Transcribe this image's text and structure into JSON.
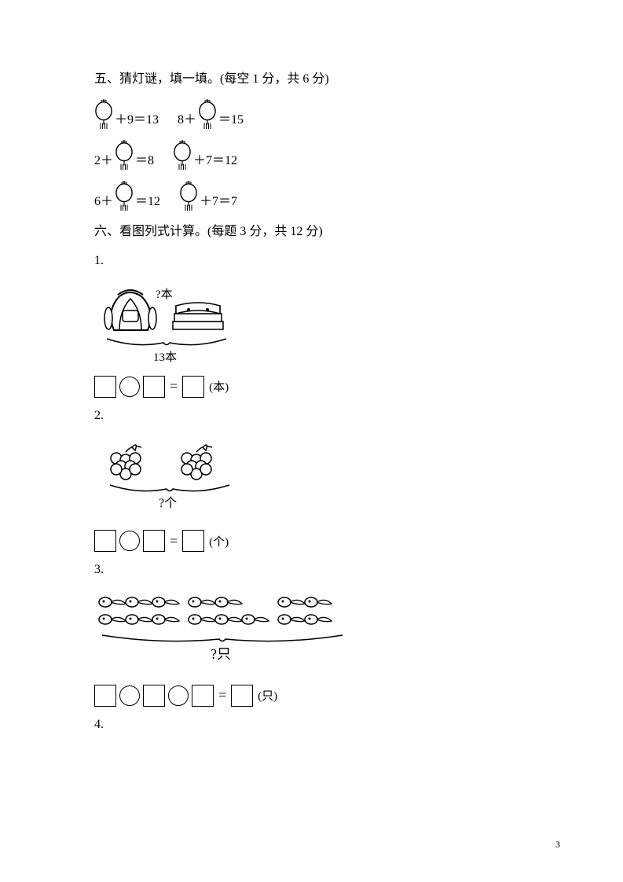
{
  "section5": {
    "title": "五、猜灯谜，填一填。(每空 1 分，共 6 分)",
    "equations": [
      [
        {
          "parts": [
            "LANTERN",
            "＋9＝13"
          ]
        },
        {
          "parts": [
            "8＋",
            "LANTERN",
            "＝15"
          ]
        }
      ],
      [
        {
          "parts": [
            "2＋",
            "LANTERN",
            "＝8"
          ]
        },
        {
          "parts": [
            "LANTERN",
            "＋7＝12"
          ]
        }
      ],
      [
        {
          "parts": [
            "6＋",
            "LANTERN",
            "＝12"
          ]
        },
        {
          "parts": [
            "LANTERN",
            "＋7＝7"
          ]
        }
      ]
    ]
  },
  "section6": {
    "title": "六、看图列式计算。(每题 3 分，共 12 分)",
    "problems": [
      {
        "num": "1.",
        "figure": "backpack-books",
        "figure_top_label": "?本",
        "figure_bottom_label": "13本",
        "formula_boxes": [
          "sq",
          "ci",
          "sq",
          "eq",
          "sq"
        ],
        "unit": "(本)"
      },
      {
        "num": "2.",
        "figure": "grapes",
        "figure_bottom_label": "?个",
        "formula_boxes": [
          "sq",
          "ci",
          "sq",
          "eq",
          "sq"
        ],
        "unit": "(个)"
      },
      {
        "num": "3.",
        "figure": "tadpoles",
        "figure_bottom_label": "?只",
        "formula_boxes": [
          "sq",
          "ci",
          "sq",
          "ci",
          "sq",
          "eq",
          "sq"
        ],
        "unit": "(只)"
      },
      {
        "num": "4.",
        "figure": null
      }
    ]
  },
  "page_number": "3",
  "style": {
    "box_size": 28,
    "circle_size": 26,
    "lantern_w": 24,
    "lantern_h": 38,
    "font_size": 16
  }
}
